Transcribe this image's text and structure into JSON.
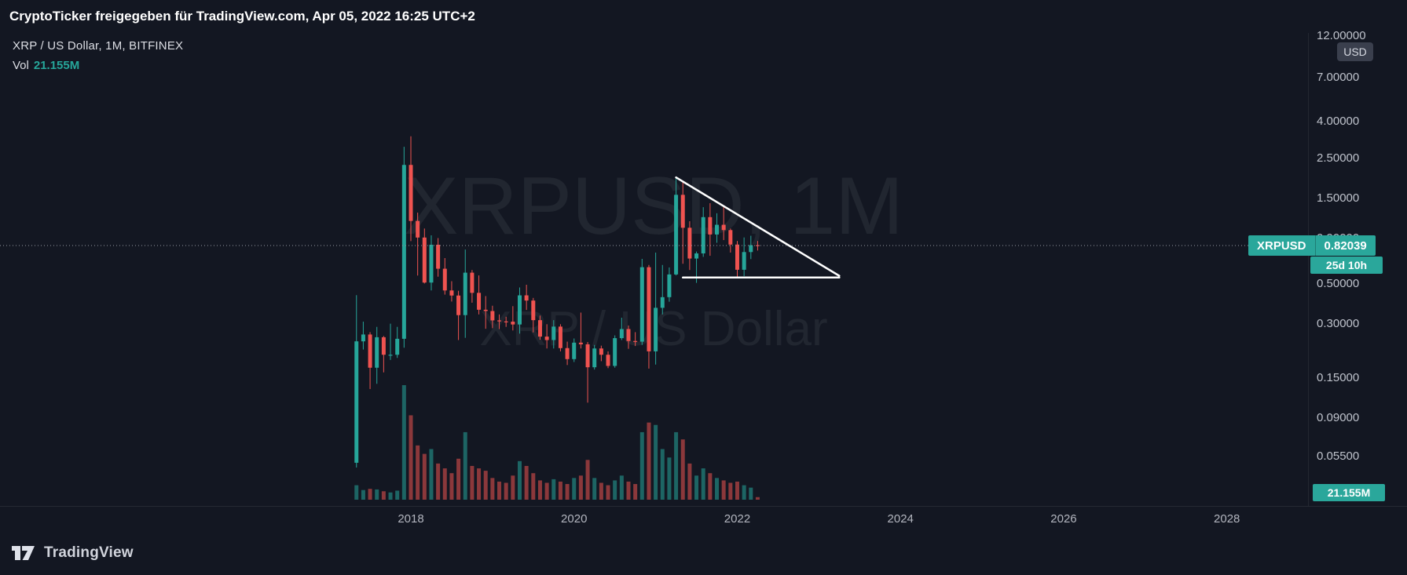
{
  "attribution_bar": {
    "text": "CryptoTicker freigegeben für TradingView.com, Apr 05, 2022 16:25 UTC+2"
  },
  "legend": {
    "title": "XRP / US Dollar, 1M, BITFINEX",
    "vol_label": "Vol",
    "vol_value": "21.155M"
  },
  "watermark": {
    "line1": "XRPUSD, 1M",
    "line2": "XRP / US Dollar"
  },
  "price_scale": {
    "unit": "USD",
    "volume_badge": "21.155M"
  },
  "price_label": {
    "symbol": "XRPUSD",
    "price": "0.82039",
    "value": 0.82039,
    "countdown": "25d 10h"
  },
  "footer": {
    "brand": "TradingView"
  },
  "colors": {
    "background": "#131722",
    "up": "#26a69a",
    "down": "#ef5350",
    "volume_up": "rgba(38,166,154,0.55)",
    "volume_down": "rgba(239,83,80,0.55)",
    "trendline": "#ffffff",
    "price_line": "#9598a1",
    "badge": "#2aa79b",
    "axis_text": "#bfc3cc",
    "watermark": "rgba(209,212,220,0.08)"
  },
  "chart_data": {
    "type": "candlestick",
    "title": "XRP / US Dollar, 1M, BITFINEX",
    "symbol": "XRPUSD",
    "exchange": "BITFINEX",
    "interval": "1M",
    "scale": "logarithmic",
    "legend_position": "top-left",
    "grid": false,
    "current_price": 0.82039,
    "current_volume_m": 21.155,
    "bar_close_countdown": "25d 10h",
    "columns": [
      "time",
      "open",
      "high",
      "low",
      "close",
      "volume_m"
    ],
    "candles": [
      [
        "2017-05",
        0.051,
        0.435,
        0.048,
        0.241,
        120
      ],
      [
        "2017-06",
        0.241,
        0.31,
        0.217,
        0.263,
        80
      ],
      [
        "2017-07",
        0.263,
        0.271,
        0.131,
        0.172,
        90
      ],
      [
        "2017-08",
        0.172,
        0.29,
        0.14,
        0.254,
        85
      ],
      [
        "2017-09",
        0.254,
        0.258,
        0.162,
        0.203,
        70
      ],
      [
        "2017-10",
        0.203,
        0.302,
        0.19,
        0.203,
        60
      ],
      [
        "2017-11",
        0.203,
        0.29,
        0.195,
        0.249,
        75
      ],
      [
        "2017-12",
        0.249,
        2.9,
        0.222,
        2.301,
        950
      ],
      [
        "2018-01",
        2.301,
        3.317,
        0.868,
        1.124,
        700
      ],
      [
        "2018-02",
        1.124,
        1.25,
        0.559,
        0.909,
        450
      ],
      [
        "2018-03",
        0.909,
        1.02,
        0.505,
        0.511,
        380
      ],
      [
        "2018-04",
        0.511,
        0.935,
        0.462,
        0.829,
        420
      ],
      [
        "2018-05",
        0.829,
        0.903,
        0.551,
        0.61,
        300
      ],
      [
        "2018-06",
        0.61,
        0.699,
        0.438,
        0.462,
        260
      ],
      [
        "2018-07",
        0.462,
        0.52,
        0.401,
        0.433,
        220
      ],
      [
        "2018-08",
        0.433,
        0.46,
        0.245,
        0.337,
        340
      ],
      [
        "2018-09",
        0.337,
        0.78,
        0.252,
        0.58,
        560
      ],
      [
        "2018-10",
        0.58,
        0.6,
        0.395,
        0.448,
        280
      ],
      [
        "2018-11",
        0.448,
        0.56,
        0.34,
        0.361,
        260
      ],
      [
        "2018-12",
        0.361,
        0.43,
        0.283,
        0.355,
        240
      ],
      [
        "2019-01",
        0.355,
        0.38,
        0.285,
        0.315,
        180
      ],
      [
        "2019-02",
        0.315,
        0.34,
        0.282,
        0.311,
        150
      ],
      [
        "2019-03",
        0.311,
        0.33,
        0.29,
        0.31,
        140
      ],
      [
        "2019-04",
        0.31,
        0.378,
        0.277,
        0.299,
        200
      ],
      [
        "2019-05",
        0.299,
        0.48,
        0.266,
        0.434,
        320
      ],
      [
        "2019-06",
        0.434,
        0.497,
        0.36,
        0.406,
        280
      ],
      [
        "2019-07",
        0.406,
        0.42,
        0.27,
        0.316,
        220
      ],
      [
        "2019-08",
        0.316,
        0.335,
        0.246,
        0.256,
        160
      ],
      [
        "2019-09",
        0.256,
        0.3,
        0.22,
        0.245,
        140
      ],
      [
        "2019-10",
        0.245,
        0.316,
        0.22,
        0.291,
        170
      ],
      [
        "2019-11",
        0.291,
        0.3,
        0.212,
        0.221,
        150
      ],
      [
        "2019-12",
        0.221,
        0.24,
        0.178,
        0.192,
        130
      ],
      [
        "2020-01",
        0.192,
        0.25,
        0.185,
        0.237,
        180
      ],
      [
        "2020-02",
        0.237,
        0.348,
        0.22,
        0.232,
        200
      ],
      [
        "2020-03",
        0.232,
        0.239,
        0.11,
        0.173,
        330
      ],
      [
        "2020-04",
        0.173,
        0.23,
        0.168,
        0.22,
        180
      ],
      [
        "2020-05",
        0.22,
        0.228,
        0.187,
        0.203,
        140
      ],
      [
        "2020-06",
        0.203,
        0.212,
        0.171,
        0.176,
        120
      ],
      [
        "2020-07",
        0.176,
        0.26,
        0.172,
        0.251,
        160
      ],
      [
        "2020-08",
        0.251,
        0.326,
        0.245,
        0.282,
        200
      ],
      [
        "2020-09",
        0.282,
        0.295,
        0.219,
        0.242,
        150
      ],
      [
        "2020-10",
        0.242,
        0.271,
        0.227,
        0.24,
        130
      ],
      [
        "2020-11",
        0.24,
        0.692,
        0.23,
        0.622,
        560
      ],
      [
        "2020-12",
        0.622,
        0.64,
        0.17,
        0.212,
        640
      ],
      [
        "2021-01",
        0.212,
        0.75,
        0.179,
        0.37,
        620
      ],
      [
        "2021-02",
        0.37,
        0.64,
        0.34,
        0.424,
        420
      ],
      [
        "2021-03",
        0.424,
        0.62,
        0.4,
        0.567,
        350
      ],
      [
        "2021-04",
        0.567,
        1.96,
        0.56,
        1.57,
        560
      ],
      [
        "2021-05",
        1.57,
        1.84,
        0.65,
        1.03,
        500
      ],
      [
        "2021-06",
        1.03,
        1.12,
        0.6,
        0.695,
        300
      ],
      [
        "2021-07",
        0.695,
        0.76,
        0.509,
        0.742,
        200
      ],
      [
        "2021-08",
        0.742,
        1.34,
        0.71,
        1.18,
        260
      ],
      [
        "2021-09",
        1.18,
        1.41,
        0.72,
        0.945,
        220
      ],
      [
        "2021-10",
        0.945,
        1.24,
        0.85,
        1.07,
        180
      ],
      [
        "2021-11",
        1.07,
        1.35,
        0.88,
        1.0,
        160
      ],
      [
        "2021-12",
        1.0,
        1.02,
        0.75,
        0.831,
        140
      ],
      [
        "2022-01",
        0.831,
        0.87,
        0.548,
        0.602,
        150
      ],
      [
        "2022-02",
        0.602,
        0.91,
        0.555,
        0.755,
        120
      ],
      [
        "2022-03",
        0.755,
        0.93,
        0.69,
        0.825,
        100
      ],
      [
        "2022-04",
        0.825,
        0.87,
        0.77,
        0.82039,
        21.155
      ]
    ],
    "price_line": {
      "value": 0.82039,
      "style": "dotted"
    },
    "trendlines": [
      {
        "type": "descending-resistance",
        "from": {
          "time": "2021-04",
          "price": 1.96
        },
        "to": {
          "time": "2023-04",
          "price": 0.557
        }
      },
      {
        "type": "horizontal-support",
        "from": {
          "time": "2021-05",
          "price": 0.545
        },
        "to": {
          "time": "2023-04",
          "price": 0.545
        }
      }
    ],
    "y_axis": {
      "type": "log",
      "unit": "USD",
      "ticks": [
        {
          "value": 12,
          "label": "12.00000"
        },
        {
          "value": 7,
          "label": "7.00000"
        },
        {
          "value": 4,
          "label": "4.00000"
        },
        {
          "value": 2.5,
          "label": "2.50000"
        },
        {
          "value": 1.5,
          "label": "1.50000"
        },
        {
          "value": 0.9,
          "label": "0.90000"
        },
        {
          "value": 0.5,
          "label": "0.50000"
        },
        {
          "value": 0.3,
          "label": "0.30000"
        },
        {
          "value": 0.15,
          "label": "0.15000"
        },
        {
          "value": 0.09,
          "label": "0.09000"
        },
        {
          "value": 0.055,
          "label": "0.05500"
        }
      ]
    },
    "x_axis": {
      "tick_years": [
        "2018",
        "2020",
        "2022",
        "2024",
        "2026",
        "2028"
      ]
    }
  }
}
